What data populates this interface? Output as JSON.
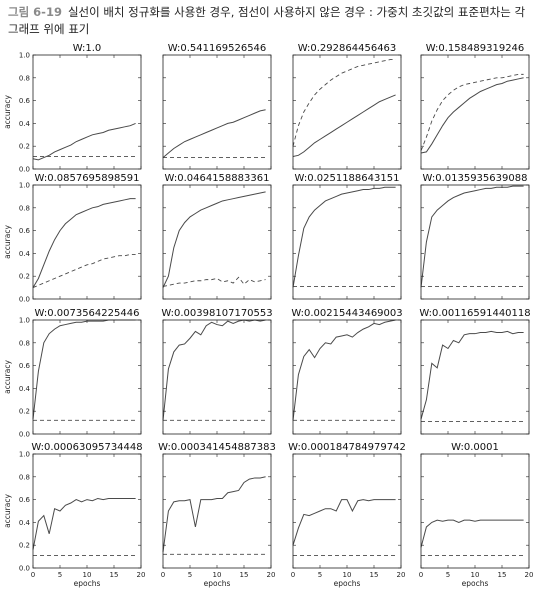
{
  "caption": {
    "figure_label": "그림 6-19",
    "text": "실선이 배치 정규화를 사용한 경우, 점선이 사용하지 않은 경우 : 가중치 초깃값의 표준편차는 각 그래프 위에 표기"
  },
  "chart_data": {
    "type": "line",
    "layout": "4x4 small multiples",
    "xlabel": "epochs",
    "ylabel": "accuracy",
    "xlim": [
      0,
      20
    ],
    "ylim": [
      0.0,
      1.0
    ],
    "xticks": [
      0,
      5,
      10,
      15,
      20
    ],
    "yticks": [
      "0.0",
      "0.2",
      "0.4",
      "0.6",
      "0.8",
      "1.0"
    ],
    "colors": {
      "solid": "#4a4a4a",
      "dashed": "#4a4a4a"
    },
    "line_styles": {
      "solid": "with batch normalization",
      "dashed": "without batch normalization"
    },
    "panels": [
      {
        "title": "W:1.0",
        "solid": [
          0.09,
          0.08,
          0.1,
          0.12,
          0.15,
          0.17,
          0.19,
          0.21,
          0.24,
          0.26,
          0.28,
          0.3,
          0.31,
          0.32,
          0.34,
          0.35,
          0.36,
          0.37,
          0.38,
          0.4
        ],
        "dashed": [
          0.11,
          0.11,
          0.11,
          0.11,
          0.11,
          0.11,
          0.11,
          0.11,
          0.11,
          0.11,
          0.11,
          0.11,
          0.11,
          0.11,
          0.11,
          0.11,
          0.11,
          0.11,
          0.11,
          0.11
        ]
      },
      {
        "title": "W:0.541169526546",
        "solid": [
          0.1,
          0.14,
          0.18,
          0.21,
          0.24,
          0.26,
          0.28,
          0.3,
          0.32,
          0.34,
          0.36,
          0.38,
          0.4,
          0.41,
          0.43,
          0.45,
          0.47,
          0.49,
          0.51,
          0.52
        ],
        "dashed": [
          0.1,
          0.1,
          0.1,
          0.1,
          0.1,
          0.1,
          0.1,
          0.1,
          0.1,
          0.1,
          0.1,
          0.1,
          0.1,
          0.1,
          0.1,
          0.1,
          0.1,
          0.1,
          0.1,
          0.1
        ]
      },
      {
        "title": "W:0.292864456463",
        "solid": [
          0.11,
          0.12,
          0.15,
          0.19,
          0.23,
          0.26,
          0.29,
          0.32,
          0.35,
          0.38,
          0.41,
          0.44,
          0.47,
          0.5,
          0.53,
          0.56,
          0.59,
          0.61,
          0.63,
          0.65
        ],
        "dashed": [
          0.2,
          0.38,
          0.5,
          0.58,
          0.65,
          0.7,
          0.74,
          0.78,
          0.81,
          0.84,
          0.86,
          0.88,
          0.9,
          0.91,
          0.92,
          0.93,
          0.94,
          0.95,
          0.96,
          0.96
        ]
      },
      {
        "title": "W:0.158489319246",
        "solid": [
          0.14,
          0.15,
          0.22,
          0.3,
          0.38,
          0.45,
          0.5,
          0.54,
          0.58,
          0.62,
          0.65,
          0.68,
          0.7,
          0.72,
          0.74,
          0.75,
          0.77,
          0.78,
          0.79,
          0.8
        ],
        "dashed": [
          0.16,
          0.28,
          0.42,
          0.52,
          0.6,
          0.65,
          0.69,
          0.72,
          0.74,
          0.75,
          0.76,
          0.77,
          0.78,
          0.79,
          0.8,
          0.8,
          0.81,
          0.82,
          0.83,
          0.83
        ]
      },
      {
        "title": "W:0.0857695898591",
        "solid": [
          0.1,
          0.18,
          0.3,
          0.42,
          0.52,
          0.6,
          0.66,
          0.7,
          0.74,
          0.76,
          0.78,
          0.8,
          0.81,
          0.83,
          0.84,
          0.85,
          0.86,
          0.87,
          0.88,
          0.88
        ],
        "dashed": [
          0.1,
          0.12,
          0.14,
          0.16,
          0.18,
          0.2,
          0.22,
          0.24,
          0.26,
          0.28,
          0.3,
          0.31,
          0.33,
          0.35,
          0.36,
          0.37,
          0.38,
          0.38,
          0.39,
          0.39
        ]
      },
      {
        "title": "W:0.0464158883361",
        "solid": [
          0.1,
          0.2,
          0.45,
          0.6,
          0.67,
          0.72,
          0.75,
          0.78,
          0.8,
          0.82,
          0.84,
          0.86,
          0.87,
          0.88,
          0.89,
          0.9,
          0.91,
          0.92,
          0.93,
          0.94
        ],
        "dashed": [
          0.11,
          0.12,
          0.13,
          0.14,
          0.14,
          0.15,
          0.16,
          0.16,
          0.17,
          0.17,
          0.18,
          0.15,
          0.16,
          0.14,
          0.19,
          0.13,
          0.17,
          0.15,
          0.16,
          0.17
        ]
      },
      {
        "title": "W:0.0251188643151",
        "solid": [
          0.1,
          0.38,
          0.62,
          0.72,
          0.78,
          0.82,
          0.86,
          0.88,
          0.9,
          0.92,
          0.93,
          0.94,
          0.95,
          0.96,
          0.96,
          0.97,
          0.97,
          0.98,
          0.98,
          0.98
        ],
        "dashed": [
          0.11,
          0.11,
          0.11,
          0.11,
          0.11,
          0.11,
          0.11,
          0.11,
          0.11,
          0.11,
          0.11,
          0.11,
          0.11,
          0.11,
          0.11,
          0.11,
          0.11,
          0.11,
          0.11,
          0.11
        ]
      },
      {
        "title": "W:0.0135935639088",
        "solid": [
          0.1,
          0.5,
          0.72,
          0.78,
          0.82,
          0.86,
          0.89,
          0.91,
          0.93,
          0.94,
          0.95,
          0.96,
          0.97,
          0.97,
          0.98,
          0.98,
          0.98,
          0.99,
          0.99,
          0.99
        ],
        "dashed": [
          0.11,
          0.11,
          0.11,
          0.11,
          0.11,
          0.11,
          0.11,
          0.11,
          0.11,
          0.11,
          0.11,
          0.11,
          0.11,
          0.11,
          0.11,
          0.11,
          0.11,
          0.11,
          0.11,
          0.11
        ]
      },
      {
        "title": "W:0.0073564225446",
        "solid": [
          0.13,
          0.55,
          0.8,
          0.88,
          0.92,
          0.95,
          0.96,
          0.97,
          0.98,
          0.98,
          0.99,
          0.99,
          0.99,
          0.99,
          1.0,
          1.0,
          1.0,
          1.0,
          1.0,
          1.0
        ],
        "dashed": [
          0.12,
          0.12,
          0.12,
          0.12,
          0.12,
          0.12,
          0.12,
          0.12,
          0.12,
          0.12,
          0.12,
          0.12,
          0.12,
          0.12,
          0.12,
          0.12,
          0.12,
          0.12,
          0.12,
          0.12
        ]
      },
      {
        "title": "W:0.00398107170553",
        "solid": [
          0.12,
          0.57,
          0.72,
          0.78,
          0.79,
          0.84,
          0.9,
          0.87,
          0.95,
          0.98,
          0.96,
          0.95,
          0.99,
          0.97,
          0.99,
          1.0,
          0.99,
          1.0,
          0.99,
          1.0
        ],
        "dashed": [
          0.12,
          0.12,
          0.12,
          0.12,
          0.12,
          0.12,
          0.12,
          0.12,
          0.12,
          0.12,
          0.12,
          0.12,
          0.12,
          0.12,
          0.12,
          0.12,
          0.12,
          0.12,
          0.12,
          0.12
        ]
      },
      {
        "title": "W:0.00215443469003",
        "solid": [
          0.12,
          0.52,
          0.68,
          0.74,
          0.67,
          0.75,
          0.8,
          0.79,
          0.85,
          0.86,
          0.87,
          0.85,
          0.89,
          0.92,
          0.94,
          0.97,
          0.96,
          0.98,
          0.99,
          1.0
        ],
        "dashed": [
          0.12,
          0.12,
          0.12,
          0.12,
          0.12,
          0.12,
          0.12,
          0.12,
          0.12,
          0.12,
          0.12,
          0.12,
          0.12,
          0.12,
          0.12,
          0.12,
          0.12,
          0.12,
          0.12,
          0.12
        ]
      },
      {
        "title": "W:0.00116591440118",
        "solid": [
          0.13,
          0.3,
          0.62,
          0.58,
          0.78,
          0.75,
          0.82,
          0.8,
          0.87,
          0.88,
          0.88,
          0.89,
          0.89,
          0.9,
          0.89,
          0.89,
          0.9,
          0.88,
          0.89,
          0.89
        ],
        "dashed": [
          0.11,
          0.11,
          0.11,
          0.11,
          0.11,
          0.11,
          0.11,
          0.11,
          0.11,
          0.11,
          0.11,
          0.11,
          0.11,
          0.11,
          0.11,
          0.11,
          0.11,
          0.11,
          0.11,
          0.11
        ]
      },
      {
        "title": "W:0.00063095734448",
        "solid": [
          0.16,
          0.41,
          0.46,
          0.3,
          0.52,
          0.5,
          0.55,
          0.57,
          0.6,
          0.58,
          0.6,
          0.59,
          0.61,
          0.6,
          0.61,
          0.61,
          0.61,
          0.61,
          0.61,
          0.61
        ],
        "dashed": [
          0.11,
          0.11,
          0.11,
          0.11,
          0.11,
          0.11,
          0.11,
          0.11,
          0.11,
          0.11,
          0.11,
          0.11,
          0.11,
          0.11,
          0.11,
          0.11,
          0.11,
          0.11,
          0.11,
          0.11
        ]
      },
      {
        "title": "W:0.000341454887383",
        "solid": [
          0.14,
          0.5,
          0.58,
          0.59,
          0.59,
          0.6,
          0.36,
          0.6,
          0.6,
          0.6,
          0.61,
          0.61,
          0.66,
          0.67,
          0.68,
          0.75,
          0.78,
          0.79,
          0.79,
          0.8
        ],
        "dashed": [
          0.12,
          0.12,
          0.12,
          0.12,
          0.12,
          0.12,
          0.12,
          0.12,
          0.12,
          0.12,
          0.12,
          0.12,
          0.12,
          0.12,
          0.12,
          0.12,
          0.12,
          0.12,
          0.12,
          0.12
        ]
      },
      {
        "title": "W:0.000184784979742",
        "solid": [
          0.2,
          0.35,
          0.47,
          0.46,
          0.48,
          0.5,
          0.52,
          0.52,
          0.5,
          0.6,
          0.6,
          0.5,
          0.59,
          0.6,
          0.59,
          0.6,
          0.6,
          0.6,
          0.6,
          0.6
        ],
        "dashed": [
          0.11,
          0.11,
          0.11,
          0.11,
          0.11,
          0.11,
          0.11,
          0.11,
          0.11,
          0.11,
          0.11,
          0.11,
          0.11,
          0.11,
          0.11,
          0.11,
          0.11,
          0.11,
          0.11,
          0.11
        ]
      },
      {
        "title": "W:0.0001",
        "solid": [
          0.18,
          0.36,
          0.4,
          0.42,
          0.41,
          0.42,
          0.42,
          0.4,
          0.42,
          0.42,
          0.41,
          0.42,
          0.42,
          0.42,
          0.42,
          0.42,
          0.42,
          0.42,
          0.42,
          0.42
        ],
        "dashed": [
          0.11,
          0.11,
          0.11,
          0.11,
          0.11,
          0.11,
          0.11,
          0.11,
          0.11,
          0.11,
          0.11,
          0.11,
          0.11,
          0.11,
          0.11,
          0.11,
          0.11,
          0.11,
          0.11,
          0.11
        ]
      }
    ]
  }
}
